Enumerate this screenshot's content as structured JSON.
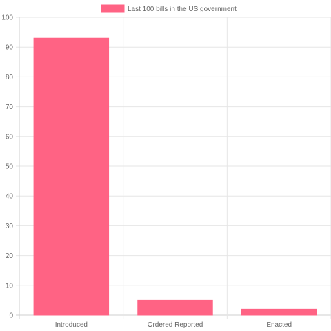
{
  "chart_data": {
    "type": "bar",
    "categories": [
      "Introduced",
      "Ordered Reported",
      "Enacted"
    ],
    "series": [
      {
        "name": "Last 100 bills in the US government",
        "values": [
          93,
          5,
          2
        ],
        "color": "#ff6384"
      }
    ],
    "title": "",
    "xlabel": "",
    "ylabel": "",
    "ylim": [
      0,
      100
    ],
    "yticks": [
      "0",
      "10",
      "20",
      "30",
      "40",
      "50",
      "60",
      "70",
      "80",
      "90",
      "100"
    ],
    "grid": true,
    "legend_position": "top-center"
  },
  "colors": {
    "grid": "#e6e6e6",
    "axis": "#cfcfcf",
    "text": "#666666"
  }
}
